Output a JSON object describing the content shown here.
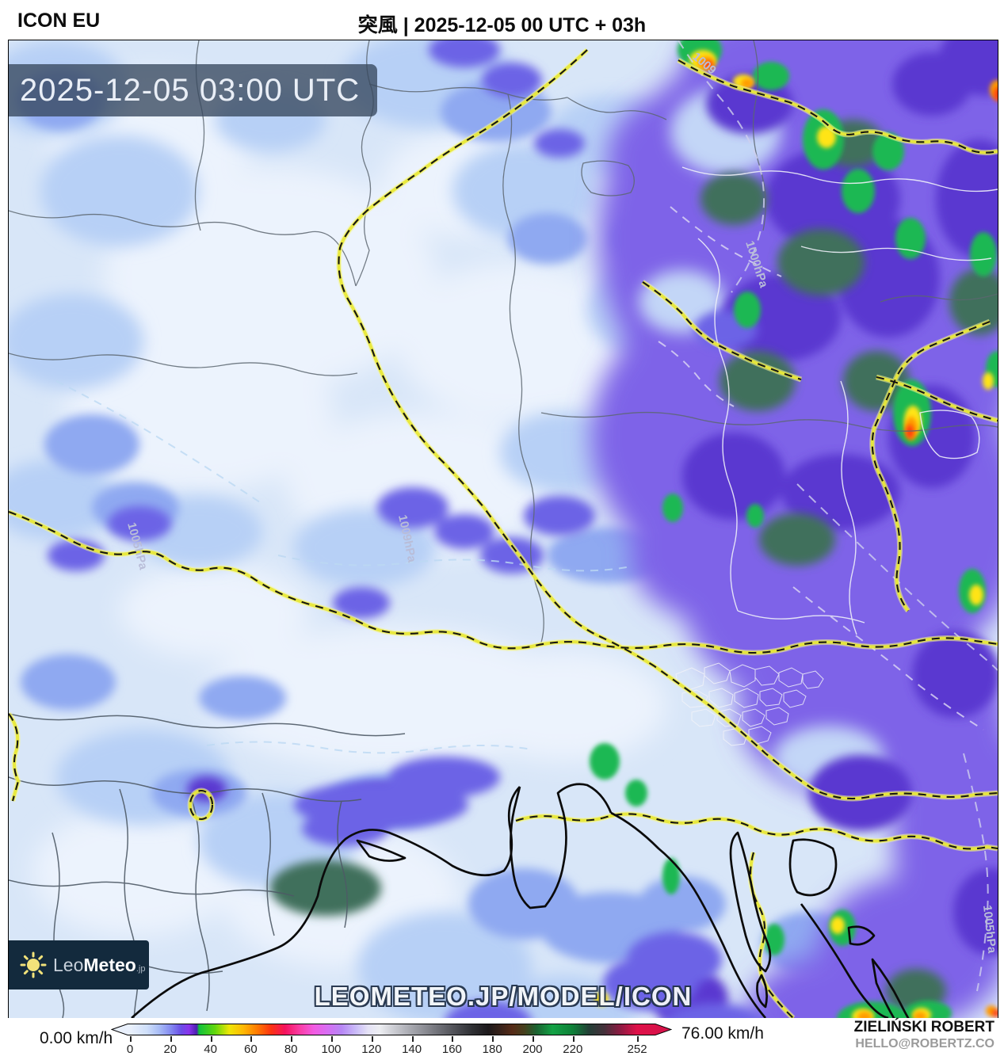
{
  "header": {
    "model": "ICON EU",
    "title": "突風 | 2025-12-05 00 UTC + 03h"
  },
  "map": {
    "timestamp": "2025-12-05 03:00 UTC",
    "watermark": "LEOMETEO.JP/MODEL/ICON",
    "isobar_labels": [
      "1009",
      "1000hPa",
      "1009hPa",
      "1005hPa",
      "1005hPa"
    ]
  },
  "logo": {
    "prefix": "Leo",
    "suffix": "Meteo",
    "tld": ".jp"
  },
  "legend": {
    "min_label": "0.00 km/h",
    "max_label": "76.00 km/h",
    "unit": "km/h",
    "scale_max": 252,
    "ticks": [
      0,
      20,
      40,
      60,
      80,
      100,
      120,
      140,
      160,
      180,
      200,
      220,
      252
    ],
    "gradient_stops": [
      [
        0,
        "#e9f0fc"
      ],
      [
        3.4,
        "#e9f0fc"
      ],
      [
        6.3,
        "#cfdffa"
      ],
      [
        8.4,
        "#aabef6"
      ],
      [
        10.6,
        "#8389f0"
      ],
      [
        12.4,
        "#6a4de6"
      ],
      [
        13.8,
        "#8a33ec"
      ],
      [
        15.2,
        "#4a1fb0"
      ],
      [
        15.6,
        "#10c13c"
      ],
      [
        18.5,
        "#63d70c"
      ],
      [
        21,
        "#eee607"
      ],
      [
        23.5,
        "#ffb904"
      ],
      [
        26,
        "#ff7a00"
      ],
      [
        28.5,
        "#fc3212"
      ],
      [
        31,
        "#f4125e"
      ],
      [
        33.6,
        "#fa3da4"
      ],
      [
        36.1,
        "#f25be2"
      ],
      [
        38.6,
        "#d76ef3"
      ],
      [
        41.1,
        "#b787f5"
      ],
      [
        43.6,
        "#c9baf8"
      ],
      [
        45.8,
        "#e5e2f6"
      ],
      [
        47.9,
        "#edeef2"
      ],
      [
        50.1,
        "#d0d1d7"
      ],
      [
        52.9,
        "#aeafb6"
      ],
      [
        55.8,
        "#8d8e95"
      ],
      [
        58.7,
        "#6c6d74"
      ],
      [
        61.6,
        "#4c4d53"
      ],
      [
        64.4,
        "#2f3034"
      ],
      [
        67.3,
        "#1d191b"
      ],
      [
        69.5,
        "#38221a"
      ],
      [
        71.6,
        "#562b17"
      ],
      [
        73.8,
        "#45401d"
      ],
      [
        75.9,
        "#1b6130"
      ],
      [
        78.8,
        "#13a245"
      ],
      [
        82.4,
        "#0e8038"
      ],
      [
        85.3,
        "#233f36"
      ],
      [
        88.1,
        "#45303a"
      ],
      [
        91,
        "#8f1a42"
      ],
      [
        93.9,
        "#df1149"
      ],
      [
        100,
        "#d5134a"
      ]
    ]
  },
  "credits": {
    "author": "ZIELIŃSKI ROBERT",
    "contact": "HELLO@ROBERTZ.CO"
  },
  "colors": {
    "field_blue": "#d8e6f8",
    "storm_purple": "#7e64e8",
    "border_yellow": "#e8e838",
    "timestamp_bg": "rgba(55,72,94,0.78)",
    "logo_bg": "#132a3d"
  }
}
